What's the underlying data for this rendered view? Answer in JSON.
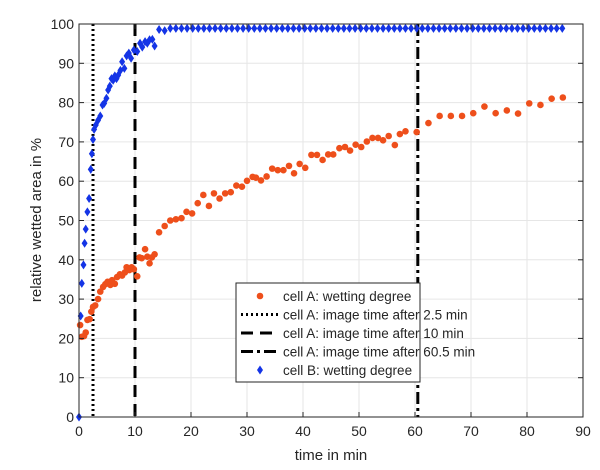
{
  "chart_data": {
    "type": "scatter",
    "title": "",
    "xlabel": "time in min",
    "ylabel": "relative wetted area in %",
    "xlim": [
      0,
      90
    ],
    "ylim": [
      0,
      100
    ],
    "xticks": [
      "0",
      "10",
      "20",
      "30",
      "40",
      "50",
      "60",
      "70",
      "80",
      "90"
    ],
    "yticks": [
      "0",
      "10",
      "20",
      "30",
      "40",
      "50",
      "60",
      "70",
      "80",
      "90",
      "100"
    ],
    "grid": true,
    "legend_position": "bottom-center",
    "series": [
      {
        "name": "cell A: wetting degree",
        "marker": "dot",
        "color": "#ee4f1b",
        "points": [
          [
            0.2,
            23.4
          ],
          [
            0.5,
            20.4
          ],
          [
            0.9,
            20.6
          ],
          [
            1.2,
            21.5
          ],
          [
            1.5,
            24.7
          ],
          [
            1.9,
            24.9
          ],
          [
            2.2,
            26.8
          ],
          [
            2.5,
            28.0
          ],
          [
            2.9,
            28.4
          ],
          [
            3.4,
            30.0
          ],
          [
            3.8,
            31.9
          ],
          [
            4.3,
            33.1
          ],
          [
            4.7,
            33.8
          ],
          [
            5.1,
            34.4
          ],
          [
            5.6,
            33.6
          ],
          [
            5.9,
            34.8
          ],
          [
            6.4,
            33.9
          ],
          [
            6.8,
            35.6
          ],
          [
            7.3,
            36.3
          ],
          [
            7.7,
            36.0
          ],
          [
            8.2,
            36.8
          ],
          [
            8.5,
            38.1
          ],
          [
            9.0,
            37.4
          ],
          [
            9.4,
            38.1
          ],
          [
            9.8,
            37.6
          ],
          [
            10.4,
            35.8
          ],
          [
            10.8,
            40.6
          ],
          [
            11.2,
            40.4
          ],
          [
            11.8,
            42.7
          ],
          [
            12.2,
            40.8
          ],
          [
            12.6,
            39.1
          ],
          [
            13.0,
            40.6
          ],
          [
            13.5,
            41.4
          ],
          [
            14.3,
            47.0
          ],
          [
            15.3,
            48.6
          ],
          [
            16.3,
            50.0
          ],
          [
            17.3,
            50.3
          ],
          [
            18.3,
            50.6
          ],
          [
            19.2,
            52.2
          ],
          [
            20.2,
            51.8
          ],
          [
            21.2,
            54.4
          ],
          [
            22.2,
            56.5
          ],
          [
            23.2,
            53.7
          ],
          [
            24.1,
            56.9
          ],
          [
            25.1,
            55.6
          ],
          [
            26.1,
            56.9
          ],
          [
            27.1,
            57.2
          ],
          [
            28.1,
            58.9
          ],
          [
            29.1,
            58.6
          ],
          [
            30.0,
            60.1
          ],
          [
            31.0,
            61.1
          ],
          [
            31.6,
            60.9
          ],
          [
            32.5,
            60.2
          ],
          [
            33.5,
            61.2
          ],
          [
            34.5,
            63.2
          ],
          [
            35.5,
            62.8
          ],
          [
            36.5,
            62.8
          ],
          [
            37.5,
            63.9
          ],
          [
            38.4,
            62.0
          ],
          [
            39.4,
            64.4
          ],
          [
            40.4,
            63.4
          ],
          [
            41.5,
            66.7
          ],
          [
            42.5,
            66.7
          ],
          [
            43.5,
            65.4
          ],
          [
            44.5,
            66.8
          ],
          [
            45.4,
            66.8
          ],
          [
            46.5,
            68.4
          ],
          [
            47.5,
            68.7
          ],
          [
            48.4,
            67.8
          ],
          [
            49.4,
            69.3
          ],
          [
            50.4,
            68.7
          ],
          [
            51.4,
            70.1
          ],
          [
            52.4,
            71.0
          ],
          [
            53.4,
            71.0
          ],
          [
            54.3,
            70.4
          ],
          [
            55.3,
            71.5
          ],
          [
            56.4,
            69.2
          ],
          [
            57.3,
            72.0
          ],
          [
            58.3,
            72.7
          ],
          [
            60.3,
            72.5
          ],
          [
            62.4,
            74.8
          ],
          [
            64.4,
            76.6
          ],
          [
            66.4,
            76.6
          ],
          [
            68.4,
            76.6
          ],
          [
            70.4,
            77.3
          ],
          [
            72.4,
            79.0
          ],
          [
            74.4,
            77.3
          ],
          [
            76.4,
            78.0
          ],
          [
            78.4,
            77.2
          ],
          [
            80.4,
            79.8
          ],
          [
            82.4,
            79.4
          ],
          [
            84.4,
            81.0
          ],
          [
            86.4,
            81.3
          ]
        ]
      },
      {
        "name": "cell B: wetting degree",
        "marker": "diamond",
        "color": "#1434e6",
        "points": [
          [
            0,
            0
          ],
          [
            0.3,
            25.7
          ],
          [
            0.5,
            34.0
          ],
          [
            0.8,
            38.7
          ],
          [
            1.0,
            44.2
          ],
          [
            1.2,
            47.8
          ],
          [
            1.5,
            52.2
          ],
          [
            1.8,
            55.6
          ],
          [
            2.1,
            63.0
          ],
          [
            2.3,
            67.0
          ],
          [
            2.5,
            70.6
          ],
          [
            2.7,
            73.2
          ],
          [
            3.0,
            74.3
          ],
          [
            3.4,
            75.5
          ],
          [
            3.8,
            76.6
          ],
          [
            4.2,
            79.4
          ],
          [
            4.5,
            79.8
          ],
          [
            4.9,
            81.1
          ],
          [
            5.2,
            83.2
          ],
          [
            5.5,
            84.2
          ],
          [
            5.8,
            86.1
          ],
          [
            6.1,
            85.7
          ],
          [
            6.4,
            86.8
          ],
          [
            6.7,
            86.1
          ],
          [
            7.0,
            87.0
          ],
          [
            7.4,
            88.2
          ],
          [
            7.7,
            90.4
          ],
          [
            8.1,
            88.7
          ],
          [
            8.5,
            91.9
          ],
          [
            8.9,
            92.6
          ],
          [
            9.3,
            91.3
          ],
          [
            9.8,
            93.4
          ],
          [
            10.4,
            93.0
          ],
          [
            10.9,
            95.1
          ],
          [
            11.3,
            94.1
          ],
          [
            11.8,
            95.5
          ],
          [
            12.2,
            95.1
          ],
          [
            12.6,
            96.0
          ],
          [
            13.1,
            96.1
          ],
          [
            13.5,
            94.4
          ],
          [
            14.3,
            98.6
          ],
          [
            15.3,
            98.3
          ],
          [
            16.3,
            98.9
          ],
          [
            17.3,
            98.9
          ],
          [
            18.3,
            98.9
          ],
          [
            19.3,
            98.9
          ],
          [
            20.3,
            98.9
          ],
          [
            21.3,
            98.9
          ],
          [
            22.3,
            98.9
          ],
          [
            23.3,
            98.9
          ],
          [
            24.3,
            98.9
          ],
          [
            25.3,
            98.9
          ],
          [
            26.3,
            98.9
          ],
          [
            27.3,
            98.9
          ],
          [
            28.3,
            98.9
          ],
          [
            29.3,
            98.9
          ],
          [
            30.3,
            98.9
          ],
          [
            31.3,
            98.9
          ],
          [
            32.3,
            98.9
          ],
          [
            33.3,
            98.9
          ],
          [
            34.3,
            98.9
          ],
          [
            35.3,
            98.9
          ],
          [
            36.3,
            98.9
          ],
          [
            37.3,
            98.9
          ],
          [
            38.3,
            98.9
          ],
          [
            39.3,
            98.9
          ],
          [
            40.3,
            98.9
          ],
          [
            41.3,
            98.9
          ],
          [
            42.3,
            98.9
          ],
          [
            43.3,
            98.9
          ],
          [
            44.3,
            98.9
          ],
          [
            45.3,
            98.9
          ],
          [
            46.3,
            98.9
          ],
          [
            47.3,
            98.9
          ],
          [
            48.3,
            98.9
          ],
          [
            49.3,
            98.9
          ],
          [
            50.3,
            98.9
          ],
          [
            51.3,
            98.9
          ],
          [
            52.3,
            98.9
          ],
          [
            53.3,
            98.9
          ],
          [
            54.3,
            98.9
          ],
          [
            55.3,
            98.9
          ],
          [
            56.3,
            98.9
          ],
          [
            57.3,
            98.9
          ],
          [
            58.3,
            98.9
          ],
          [
            59.3,
            98.9
          ],
          [
            60.3,
            98.9
          ],
          [
            61.3,
            98.9
          ],
          [
            62.3,
            98.9
          ],
          [
            63.3,
            98.9
          ],
          [
            64.3,
            98.9
          ],
          [
            65.3,
            98.9
          ],
          [
            66.3,
            98.9
          ],
          [
            67.3,
            98.9
          ],
          [
            68.3,
            98.9
          ],
          [
            69.3,
            98.9
          ],
          [
            70.3,
            98.9
          ],
          [
            71.3,
            98.9
          ],
          [
            72.3,
            98.9
          ],
          [
            73.3,
            98.9
          ],
          [
            74.3,
            98.9
          ],
          [
            75.3,
            98.9
          ],
          [
            76.3,
            98.9
          ],
          [
            77.3,
            98.9
          ],
          [
            78.3,
            98.9
          ],
          [
            79.3,
            98.9
          ],
          [
            80.3,
            98.9
          ],
          [
            81.3,
            98.9
          ],
          [
            82.3,
            98.9
          ],
          [
            83.3,
            98.9
          ],
          [
            84.3,
            98.9
          ],
          [
            85.3,
            98.9
          ],
          [
            86.3,
            98.9
          ]
        ]
      }
    ],
    "vertical_lines": [
      {
        "name": "cell A: image time after 2.5 min",
        "x": 2.5,
        "style": "dotted",
        "color": "#000000"
      },
      {
        "name": "cell A: image time after 10 min",
        "x": 10,
        "style": "dashed",
        "color": "#000000"
      },
      {
        "name": "cell A: image time after 60.5 min",
        "x": 60.5,
        "style": "dashdot",
        "color": "#000000"
      }
    ],
    "legend": [
      "cell A: wetting degree",
      "cell A: image time after 2.5 min",
      "cell A: image time after 10 min",
      "cell A: image time after 60.5 min",
      "cell B: wetting degree"
    ]
  }
}
